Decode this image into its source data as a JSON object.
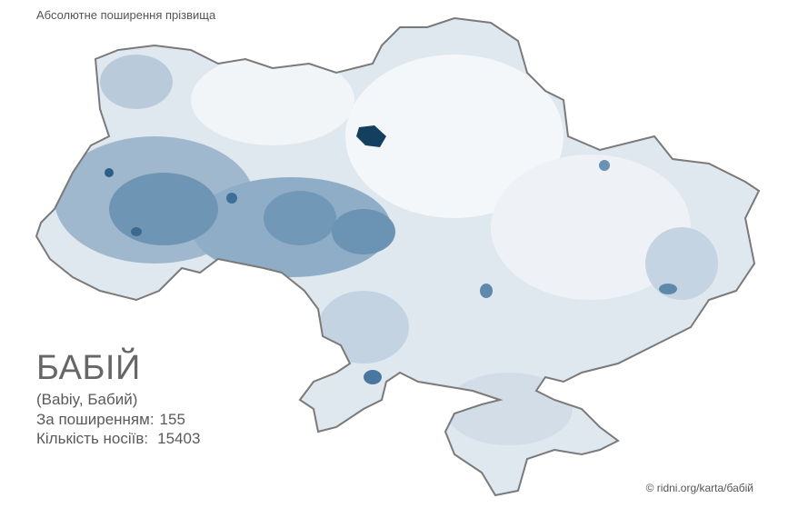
{
  "header": {
    "title": "Абсолютне поширення прізвища"
  },
  "surname": {
    "name": "БАБІЙ",
    "variants": "(Babiy, Бабий)"
  },
  "stats": [
    {
      "label": "За поширенням:",
      "value": 155
    },
    {
      "label": "Кількість носіїв:",
      "value": 15403
    }
  ],
  "footer": {
    "copyright": "© ridni.org/karta/бабій"
  }
}
